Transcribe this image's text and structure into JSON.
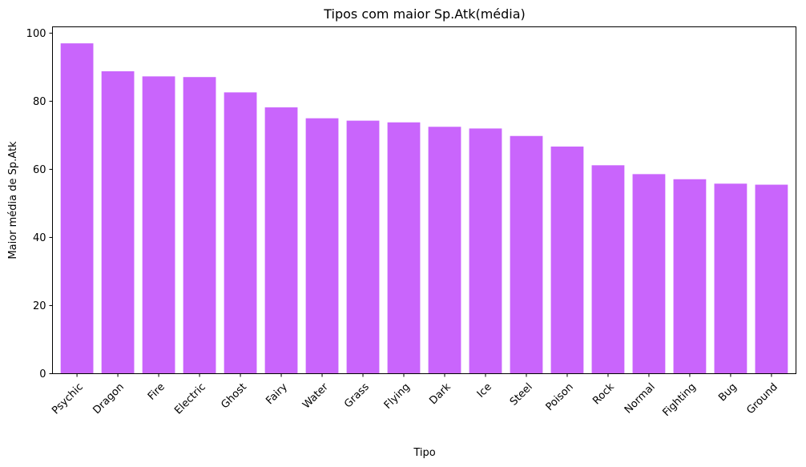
{
  "chart_data": {
    "type": "bar",
    "title": "Tipos com maior Sp.Atk(média)",
    "xlabel": "Tipo",
    "ylabel": "Maior média de Sp.Atk",
    "categories": [
      "Psychic",
      "Dragon",
      "Fire",
      "Electric",
      "Ghost",
      "Fairy",
      "Water",
      "Grass",
      "Flying",
      "Dark",
      "Ice",
      "Steel",
      "Poison",
      "Rock",
      "Normal",
      "Fighting",
      "Bug",
      "Ground"
    ],
    "values": [
      97.0,
      88.8,
      87.3,
      87.1,
      82.6,
      78.2,
      75.0,
      74.3,
      73.8,
      72.5,
      72.0,
      69.8,
      66.7,
      61.2,
      58.6,
      57.1,
      55.8,
      55.5
    ],
    "yticks": [
      0,
      20,
      40,
      60,
      80,
      100
    ],
    "ylim": [
      0,
      101.85
    ],
    "bar_color": "#c965fc",
    "grid": false,
    "legend": "none"
  }
}
